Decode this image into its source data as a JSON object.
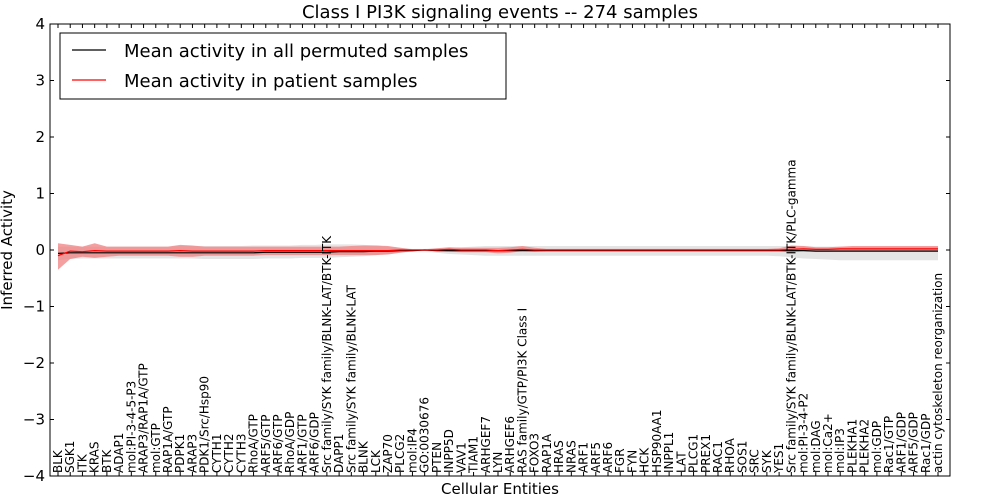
{
  "chart_data": {
    "type": "line",
    "title": "Class I PI3K signaling events -- 274 samples",
    "xlabel": "Cellular Entities",
    "ylabel": "Inferred Activity",
    "ylim": [
      -4,
      4
    ],
    "yticks": [
      4,
      3,
      2,
      1,
      0,
      -1,
      -2,
      -3,
      -4
    ],
    "ytick_labels": [
      "4",
      "3",
      "2",
      "1",
      "0",
      "−1",
      "−2",
      "−3",
      "−4"
    ],
    "legend": {
      "placement": "top-left",
      "entries": [
        {
          "label": "Mean activity in all permuted samples",
          "color": "#000000"
        },
        {
          "label": "Mean activity in patient samples",
          "color": "#ff0000"
        }
      ]
    },
    "categories": [
      "BLK",
      "SGK1",
      "ITK",
      "KRAS",
      "BTK",
      "ADAP1",
      "mol:PI-3-4-5-P3",
      "ARAP3/RAP1A/GTP",
      "mol:GTP",
      "RAP1A/GTP",
      "PDPK1",
      "ARAP3",
      "PDK1/Src/Hsp90",
      "CYTH1",
      "CYTH2",
      "CYTH3",
      "RhoA/GTP",
      "ARF5/GTP",
      "ARF6/GTP",
      "RhoA/GDP",
      "ARF1/GTP",
      "ARF6/GDP",
      "Src family/SYK family/BLNK-LAT/BTK-ITK",
      "DAPP1",
      "Src family/SYK family/BLNK-LAT",
      "BLNK",
      "LCK",
      "ZAP70",
      "PLCG2",
      "mol:IP4",
      "GO:0030676",
      "PTEN",
      "INPP5D",
      "VAV1",
      "TIAM1",
      "ARHGEF7",
      "LYN",
      "ARHGEF6",
      "RAS family/GTP/PI3K Class I",
      "FOXO3",
      "RAP1A",
      "HRAS",
      "NRAS",
      "ARF1",
      "ARF5",
      "ARF6",
      "FGR",
      "FYN",
      "HCK",
      "HSP90AA1",
      "INPPL1",
      "LAT",
      "PLCG1",
      "PREX1",
      "RAC1",
      "RHOA",
      "SOS1",
      "SRC",
      "SYK",
      "YES1",
      "Src family/SYK family/BLNK-LAT/BTK-ITK/PLC-gamma",
      "mol:PI-3-4-P2",
      "mol:DAG",
      "mol:Ca2+",
      "mol:IP3",
      "PLEKHA1",
      "PLEKHA2",
      "mol:GDP",
      "Rac1/GTP",
      "ARF1/GDP",
      "ARF5/GDP",
      "Rac1/GDP",
      "actin cytoskeleton reorganization"
    ],
    "series": [
      {
        "name": "Mean activity in all permuted samples",
        "color": "#000000",
        "values": [
          -0.06,
          -0.05,
          -0.05,
          -0.05,
          -0.05,
          -0.05,
          -0.05,
          -0.05,
          -0.05,
          -0.05,
          -0.05,
          -0.05,
          -0.05,
          -0.05,
          -0.05,
          -0.05,
          -0.05,
          -0.04,
          -0.04,
          -0.04,
          -0.04,
          -0.04,
          -0.04,
          -0.03,
          -0.03,
          -0.03,
          -0.02,
          -0.02,
          -0.01,
          -0.01,
          0.0,
          -0.01,
          -0.01,
          -0.01,
          -0.01,
          -0.01,
          -0.01,
          -0.01,
          -0.01,
          -0.01,
          -0.01,
          -0.01,
          -0.01,
          -0.01,
          -0.01,
          -0.01,
          -0.01,
          -0.01,
          -0.01,
          -0.01,
          -0.01,
          -0.01,
          -0.01,
          -0.01,
          -0.01,
          -0.01,
          -0.01,
          -0.01,
          -0.01,
          -0.01,
          -0.01,
          -0.01,
          -0.02,
          -0.02,
          -0.02,
          -0.02,
          -0.02,
          -0.02,
          -0.02,
          -0.02,
          -0.02,
          -0.02,
          -0.02
        ],
        "band_low": [
          -0.18,
          -0.16,
          -0.15,
          -0.15,
          -0.15,
          -0.15,
          -0.15,
          -0.15,
          -0.15,
          -0.15,
          -0.15,
          -0.15,
          -0.16,
          -0.16,
          -0.16,
          -0.16,
          -0.16,
          -0.15,
          -0.15,
          -0.15,
          -0.14,
          -0.14,
          -0.14,
          -0.13,
          -0.12,
          -0.11,
          -0.09,
          -0.07,
          -0.05,
          -0.03,
          -0.02,
          -0.05,
          -0.07,
          -0.08,
          -0.09,
          -0.1,
          -0.1,
          -0.1,
          -0.1,
          -0.1,
          -0.1,
          -0.1,
          -0.1,
          -0.1,
          -0.1,
          -0.1,
          -0.1,
          -0.1,
          -0.1,
          -0.1,
          -0.1,
          -0.1,
          -0.1,
          -0.1,
          -0.1,
          -0.1,
          -0.1,
          -0.1,
          -0.1,
          -0.11,
          -0.13,
          -0.15,
          -0.16,
          -0.17,
          -0.18,
          -0.18,
          -0.18,
          -0.18,
          -0.18,
          -0.18,
          -0.18,
          -0.18,
          -0.18
        ],
        "band_high": [
          0.06,
          0.06,
          0.06,
          0.06,
          0.06,
          0.06,
          0.06,
          0.06,
          0.06,
          0.06,
          0.07,
          0.07,
          0.07,
          0.07,
          0.07,
          0.07,
          0.08,
          0.08,
          0.08,
          0.08,
          0.09,
          0.09,
          0.1,
          0.1,
          0.1,
          0.09,
          0.08,
          0.06,
          0.04,
          0.02,
          0.02,
          0.03,
          0.04,
          0.05,
          0.06,
          0.07,
          0.07,
          0.07,
          0.07,
          0.07,
          0.07,
          0.07,
          0.07,
          0.07,
          0.07,
          0.07,
          0.07,
          0.07,
          0.07,
          0.07,
          0.07,
          0.07,
          0.07,
          0.07,
          0.07,
          0.07,
          0.07,
          0.07,
          0.07,
          0.07,
          0.07,
          0.07,
          0.06,
          0.06,
          0.06,
          0.06,
          0.06,
          0.06,
          0.06,
          0.06,
          0.06,
          0.06,
          0.06
        ]
      },
      {
        "name": "Mean activity in patient samples",
        "color": "#ff0000",
        "values": [
          -0.1,
          -0.02,
          -0.03,
          -0.01,
          -0.02,
          -0.02,
          -0.02,
          -0.02,
          -0.02,
          -0.02,
          -0.01,
          -0.02,
          -0.02,
          -0.02,
          -0.02,
          -0.02,
          -0.02,
          -0.01,
          -0.01,
          -0.01,
          -0.01,
          -0.01,
          -0.01,
          -0.01,
          -0.01,
          -0.01,
          -0.01,
          -0.01,
          0.0,
          0.0,
          0.0,
          0.0,
          0.01,
          0.0,
          0.0,
          0.0,
          -0.01,
          0.0,
          0.01,
          0.0,
          0.0,
          0.0,
          0.0,
          0.0,
          0.0,
          0.0,
          0.0,
          0.0,
          0.0,
          0.0,
          0.0,
          0.0,
          0.0,
          0.0,
          0.0,
          0.0,
          0.0,
          0.0,
          0.0,
          0.0,
          0.01,
          0.02,
          0.01,
          0.01,
          0.02,
          0.02,
          0.02,
          0.02,
          0.02,
          0.02,
          0.02,
          0.02,
          0.02
        ],
        "band_low": [
          -0.35,
          -0.16,
          -0.12,
          -0.14,
          -0.12,
          -0.1,
          -0.1,
          -0.1,
          -0.1,
          -0.1,
          -0.12,
          -0.12,
          -0.1,
          -0.1,
          -0.1,
          -0.1,
          -0.1,
          -0.09,
          -0.09,
          -0.09,
          -0.09,
          -0.09,
          -0.09,
          -0.09,
          -0.09,
          -0.09,
          -0.09,
          -0.08,
          -0.05,
          -0.02,
          -0.01,
          -0.02,
          -0.03,
          -0.04,
          -0.04,
          -0.04,
          -0.06,
          -0.05,
          -0.02,
          -0.03,
          -0.02,
          -0.02,
          -0.02,
          -0.02,
          -0.02,
          -0.02,
          -0.02,
          -0.02,
          -0.02,
          -0.02,
          -0.02,
          -0.02,
          -0.02,
          -0.02,
          -0.02,
          -0.02,
          -0.02,
          -0.02,
          -0.02,
          -0.02,
          -0.04,
          -0.02,
          -0.03,
          -0.03,
          -0.02,
          -0.02,
          -0.02,
          -0.02,
          -0.02,
          -0.02,
          -0.02,
          -0.02,
          -0.02
        ],
        "band_high": [
          0.12,
          0.09,
          0.06,
          0.12,
          0.06,
          0.06,
          0.06,
          0.06,
          0.06,
          0.06,
          0.09,
          0.08,
          0.06,
          0.06,
          0.06,
          0.06,
          0.06,
          0.06,
          0.06,
          0.06,
          0.06,
          0.06,
          0.06,
          0.06,
          0.07,
          0.08,
          0.08,
          0.07,
          0.04,
          0.01,
          0.01,
          0.03,
          0.05,
          0.04,
          0.04,
          0.04,
          0.04,
          0.05,
          0.07,
          0.04,
          0.02,
          0.02,
          0.02,
          0.02,
          0.02,
          0.02,
          0.02,
          0.02,
          0.02,
          0.02,
          0.02,
          0.02,
          0.02,
          0.02,
          0.02,
          0.02,
          0.02,
          0.02,
          0.02,
          0.03,
          0.08,
          0.07,
          0.05,
          0.05,
          0.06,
          0.07,
          0.07,
          0.07,
          0.07,
          0.07,
          0.07,
          0.07,
          0.07
        ]
      }
    ]
  }
}
